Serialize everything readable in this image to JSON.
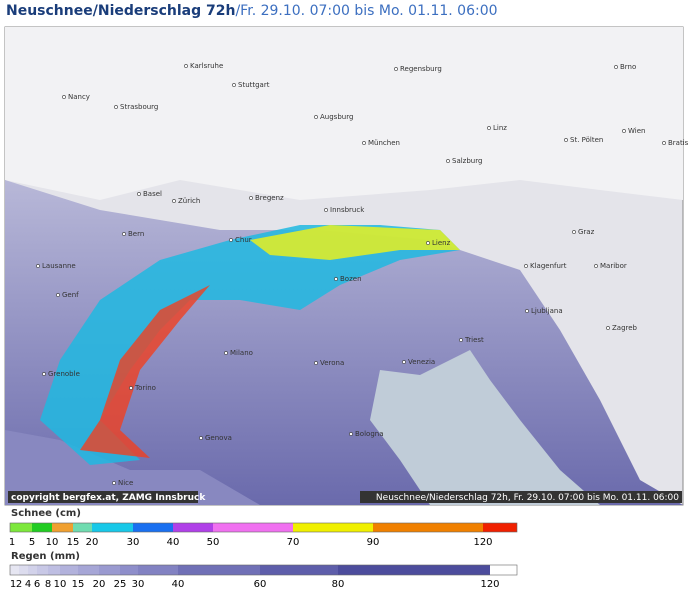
{
  "header": {
    "title": "Neuschnee/Niederschlag 72h",
    "period": "/Fr. 29.10. 07:00 bis Mo. 01.11. 06:00"
  },
  "map": {
    "cities": [
      "Karlsruhe",
      "Regensburg",
      "Brno",
      "Nancy",
      "Stuttgart",
      "Strasbourg",
      "Augsburg",
      "Linz",
      "Wien",
      "München",
      "St. Pölten",
      "Bratislava",
      "Salzburg",
      "Basel",
      "Zürich",
      "Bregenz",
      "Innsbruck",
      "Bern",
      "Chur",
      "Lienz",
      "Graz",
      "Klagenfurt",
      "Maribor",
      "Lausanne",
      "Genf",
      "Bozen",
      "Ljubljana",
      "Zagreb",
      "Milano",
      "Verona",
      "Venezia",
      "Triest",
      "Grenoble",
      "Torino",
      "Bologna",
      "Genova",
      "Nice"
    ],
    "copyright": "copyright bergfex.at, ZAMG Innsbruck",
    "caption": "Neuschnee/Niederschlag 72h, Fr. 29.10. 07:00 bis Mo. 01.11. 06:00"
  },
  "legend": {
    "snow": {
      "title": "Schnee (cm)",
      "labels": [
        1,
        5,
        10,
        15,
        20,
        30,
        40,
        50,
        70,
        90,
        120
      ],
      "colors": [
        "#7de83c",
        "#22cc22",
        "#f0a030",
        "#70dcb0",
        "#18c8e8",
        "#1a70f0",
        "#b040e8",
        "#f070f0",
        "#f0f000",
        "#f08000",
        "#f02000",
        "#e0007a"
      ]
    },
    "rain": {
      "title": "Regen (mm)",
      "labels": [
        1,
        2,
        4,
        6,
        8,
        10,
        15,
        20,
        25,
        30,
        40,
        60,
        80,
        120
      ],
      "colors": [
        "#e6e6f2",
        "#dcdcee",
        "#d2d2ea",
        "#c8c8e6",
        "#bebee2",
        "#b2b2dc",
        "#a6a6d6",
        "#9a9ad0",
        "#8e8eca",
        "#8282c2",
        "#7070b6",
        "#5e5eaa",
        "#4c4c9c"
      ]
    }
  }
}
